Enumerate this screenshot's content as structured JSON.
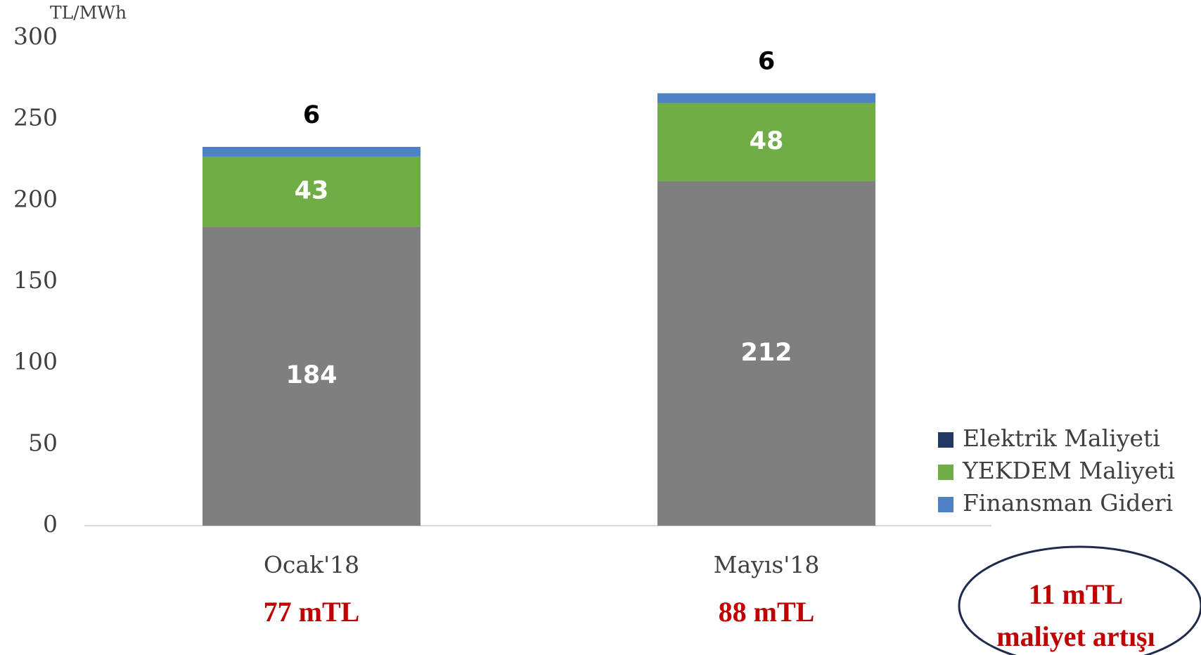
{
  "chart_data": {
    "type": "stacked_bar",
    "y_unit_label": "TL/MWh",
    "categories": [
      "Ocak'18",
      "Mayıs'18"
    ],
    "category_notes": [
      "77 mTL",
      "88 mTL"
    ],
    "series": [
      {
        "name": "Elektrik Maliyeti",
        "color": "#7f7f7f",
        "legend_color": "#1f3864",
        "label_color": "#ffffff",
        "values": [
          184,
          212
        ]
      },
      {
        "name": "YEKDEM Maliyeti",
        "color": "#70ad47",
        "legend_color": "#70ad47",
        "label_color": "#ffffff",
        "values": [
          43,
          48
        ]
      },
      {
        "name": "Finansman Gideri",
        "color": "#4f81c7",
        "legend_color": "#4f81c7",
        "label_color": "#000000",
        "values": [
          6,
          6
        ]
      }
    ],
    "ylim": [
      0,
      300
    ],
    "yticks": [
      0,
      50,
      100,
      150,
      200,
      250,
      300
    ],
    "legend": "lower right",
    "callout": [
      "11 mTL",
      "maliyet artışı"
    ]
  }
}
